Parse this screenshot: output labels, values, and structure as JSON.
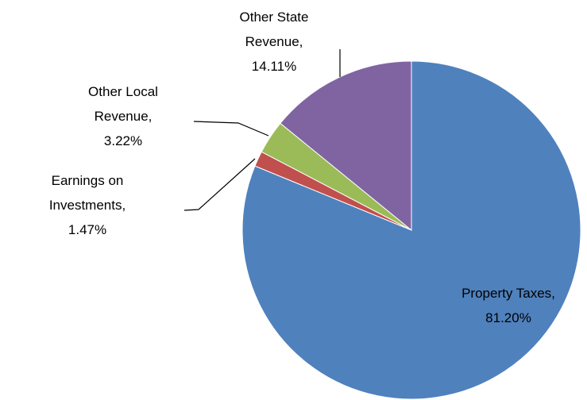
{
  "chart_data": {
    "type": "pie",
    "values": [
      81.2,
      1.47,
      3.22,
      14.11
    ],
    "value_labels": [
      "Property Taxes, 81.20%",
      "Earnings on Investments, 1.47%",
      "Other Local Revenue, 3.22%",
      "Other State Revenue, 14.11%"
    ],
    "colors": [
      "#4f81bd",
      "#c0504d",
      "#9bbb59",
      "#8064a2"
    ]
  }
}
